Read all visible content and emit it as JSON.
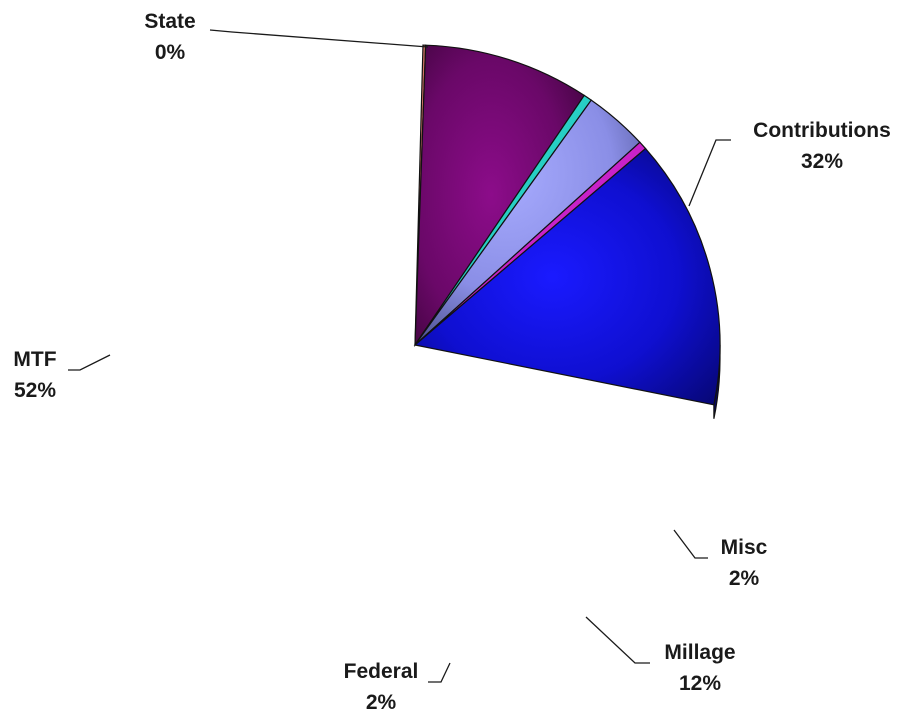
{
  "chart_data": {
    "type": "pie",
    "title": "",
    "slices": [
      {
        "name": "State",
        "value": 0,
        "value_label": "0%",
        "color": "#e07a6a"
      },
      {
        "name": "Contributions",
        "value": 32,
        "value_label": "32%",
        "color": "#7a0a78"
      },
      {
        "name": "Misc",
        "value": 2,
        "value_label": "2%",
        "color": "#22ece0"
      },
      {
        "name": "Millage",
        "value": 12,
        "value_label": "12%",
        "color": "#a3a8f4"
      },
      {
        "name": "Federal",
        "value": 2,
        "value_label": "2%",
        "color": "#e31ce3"
      },
      {
        "name": "MTF",
        "value": 52,
        "value_label": "52%",
        "color": "#1414ee"
      }
    ],
    "style": "3d-tilted",
    "legend": "none"
  }
}
